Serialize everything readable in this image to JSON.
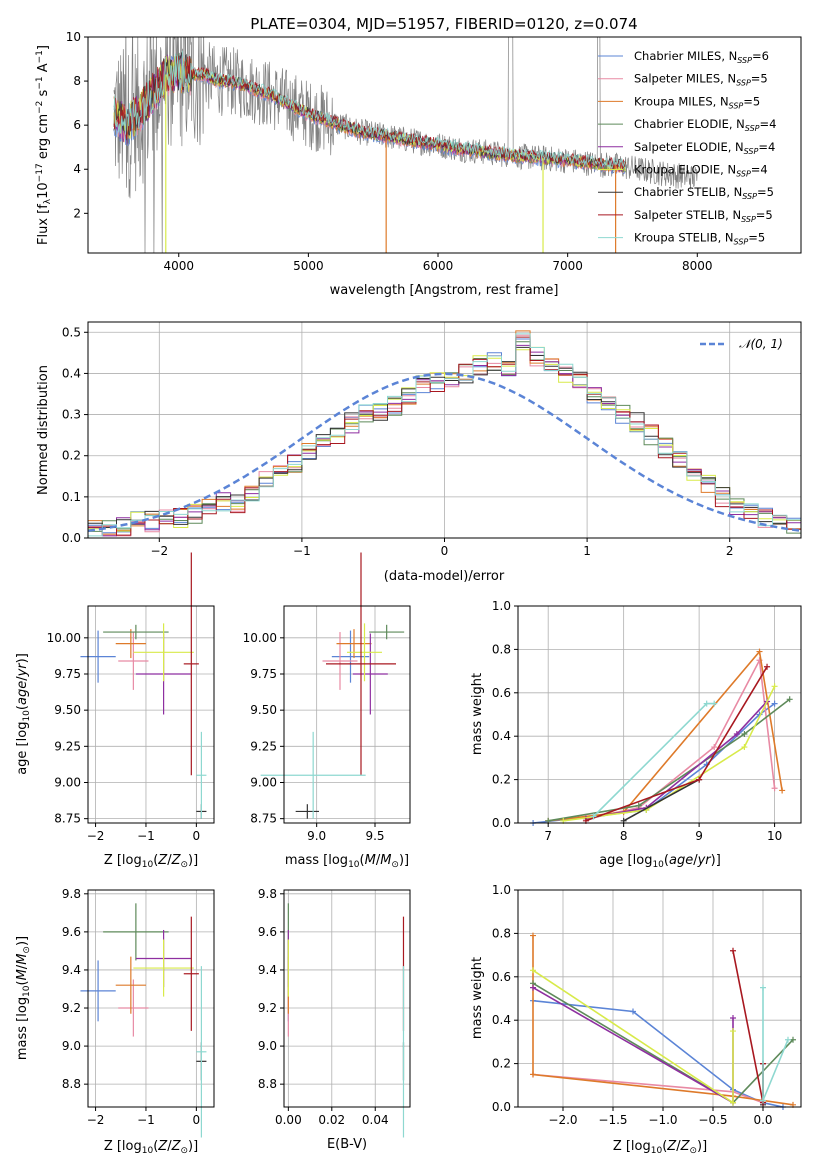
{
  "title": "PLATE=0304, MJD=51957, FIBERID=0120, z=0.074",
  "colors": {
    "chabrier_miles": "#5b84d6",
    "salpeter_miles": "#e88aa4",
    "kroupa_miles": "#de7a2a",
    "chabrier_elodie": "#5e8a5a",
    "salpeter_elodie": "#8e2fa0",
    "kroupa_elodie": "#d8ea4a",
    "chabrier_stelib": "#333333",
    "salpeter_stelib": "#a81820",
    "kroupa_stelib": "#8ed8d0",
    "data_gray": "#808080",
    "normal_dash": "#5b84d6"
  },
  "chart_data": [
    {
      "id": "spectrum",
      "type": "line",
      "xlabel": "wavelength [Angstrom, rest frame]",
      "ylabel": "Flux [f_λ 10^-17 erg cm^-2 s^-1 A^-1]",
      "xlim": [
        3300,
        8800
      ],
      "ylim": [
        0.2,
        10
      ],
      "xticks": [
        4000,
        5000,
        6000,
        7000,
        8000
      ],
      "yticks": [
        2,
        4,
        6,
        8,
        10
      ],
      "legend_position": "upper right",
      "legend": [
        {
          "base": "Chabrier MILES, N",
          "sub": "SSP",
          "tail": "=6",
          "color_key": "chabrier_miles"
        },
        {
          "base": "Salpeter MILES, N",
          "sub": "SSP",
          "tail": "=5",
          "color_key": "salpeter_miles"
        },
        {
          "base": "Kroupa MILES, N",
          "sub": "SSP",
          "tail": "=5",
          "color_key": "kroupa_miles"
        },
        {
          "base": "Chabrier ELODIE, N",
          "sub": "SSP",
          "tail": "=4",
          "color_key": "chabrier_elodie"
        },
        {
          "base": "Salpeter ELODIE, N",
          "sub": "SSP",
          "tail": "=4",
          "color_key": "salpeter_elodie"
        },
        {
          "base": "Kroupa ELODIE, N",
          "sub": "SSP",
          "tail": "=4",
          "color_key": "kroupa_elodie"
        },
        {
          "base": "Chabrier STELIB, N",
          "sub": "SSP",
          "tail": "=5",
          "color_key": "chabrier_stelib"
        },
        {
          "base": "Salpeter STELIB, N",
          "sub": "SSP",
          "tail": "=5",
          "color_key": "salpeter_stelib"
        },
        {
          "base": "Kroupa STELIB, N",
          "sub": "SSP",
          "tail": "=5",
          "color_key": "kroupa_stelib"
        }
      ],
      "model_continuum": [
        [
          3500,
          6.5
        ],
        [
          3600,
          6.0
        ],
        [
          3700,
          6.6
        ],
        [
          3800,
          7.4
        ],
        [
          3900,
          8.3
        ],
        [
          4000,
          8.4
        ],
        [
          4100,
          8.3
        ],
        [
          4200,
          8.3
        ],
        [
          4300,
          8.0
        ],
        [
          4400,
          8.0
        ],
        [
          4500,
          7.8
        ],
        [
          4600,
          7.6
        ],
        [
          4700,
          7.4
        ],
        [
          4800,
          7.1
        ],
        [
          4900,
          6.8
        ],
        [
          5000,
          6.5
        ],
        [
          5200,
          6.1
        ],
        [
          5400,
          5.7
        ],
        [
          5600,
          5.5
        ],
        [
          5800,
          5.3
        ],
        [
          6000,
          5.1
        ],
        [
          6200,
          4.9
        ],
        [
          6400,
          4.75
        ],
        [
          6600,
          4.6
        ],
        [
          6800,
          4.5
        ],
        [
          7000,
          4.4
        ],
        [
          7200,
          4.25
        ],
        [
          7400,
          4.15
        ],
        [
          7600,
          3.95
        ],
        [
          7800,
          3.75
        ],
        [
          8000,
          3.6
        ]
      ]
    },
    {
      "id": "residuals",
      "type": "line",
      "xlabel": "(data-model)/error",
      "ylabel": "Normed distribution",
      "xlim": [
        -2.5,
        2.5
      ],
      "ylim": [
        0,
        0.525
      ],
      "xticks": [
        -2,
        -1,
        0,
        1,
        2
      ],
      "yticks": [
        0.0,
        0.1,
        0.2,
        0.3,
        0.4,
        0.5
      ],
      "legend_label": "𝒩(0, 1)",
      "bin_width": 0.1,
      "bin_start": -2.5,
      "representative_hist": [
        0.02,
        0.02,
        0.03,
        0.04,
        0.04,
        0.05,
        0.05,
        0.06,
        0.07,
        0.09,
        0.08,
        0.11,
        0.14,
        0.16,
        0.18,
        0.21,
        0.24,
        0.25,
        0.28,
        0.3,
        0.31,
        0.32,
        0.34,
        0.37,
        0.38,
        0.39,
        0.4,
        0.42,
        0.43,
        0.41,
        0.48,
        0.44,
        0.42,
        0.4,
        0.38,
        0.35,
        0.33,
        0.3,
        0.28,
        0.25,
        0.22,
        0.19,
        0.15,
        0.13,
        0.1,
        0.08,
        0.07,
        0.05,
        0.04,
        0.03
      ]
    },
    {
      "id": "age_vs_Z",
      "type": "scatter",
      "xlabel": "Z [log10(Z/Z⊙)]",
      "ylabel": "age [log10(age/yr)]",
      "xlim": [
        -2.15,
        0.35
      ],
      "ylim": [
        8.72,
        10.22
      ],
      "xticks": [
        -2,
        -1,
        0
      ],
      "yticks": [
        8.75,
        9.0,
        9.25,
        9.5,
        9.75,
        10.0
      ]
    },
    {
      "id": "age_vs_mass",
      "type": "scatter",
      "xlabel": "mass [log10(M/M⊙)]",
      "ylabel": "",
      "xlim": [
        8.72,
        9.8
      ],
      "ylim": [
        8.72,
        10.22
      ],
      "xticks": [
        9.0,
        9.5
      ],
      "yticks": [
        8.75,
        9.0,
        9.25,
        9.5,
        9.75,
        10.0
      ]
    },
    {
      "id": "weight_vs_age",
      "type": "line",
      "xlabel": "age [log10(age/yr)]",
      "ylabel": "mass weight",
      "xlim": [
        6.6,
        10.35
      ],
      "ylim": [
        0,
        1
      ],
      "xticks": [
        7,
        8,
        9,
        10
      ],
      "yticks": [
        0.0,
        0.2,
        0.4,
        0.6,
        0.8,
        1.0
      ]
    },
    {
      "id": "mass_vs_Z",
      "type": "scatter",
      "xlabel": "Z [log10(Z/Z⊙)]",
      "ylabel": "mass [log10(M/M⊙)]",
      "xlim": [
        -2.15,
        0.35
      ],
      "ylim": [
        8.68,
        9.82
      ],
      "xticks": [
        -2,
        -1,
        0
      ],
      "yticks": [
        8.8,
        9.0,
        9.2,
        9.4,
        9.6,
        9.8
      ]
    },
    {
      "id": "mass_vs_ebv",
      "type": "scatter",
      "xlabel": "E(B-V)",
      "ylabel": "",
      "xlim": [
        -0.002,
        0.056
      ],
      "ylim": [
        8.68,
        9.82
      ],
      "xticks": [
        0.0,
        0.02,
        0.04
      ],
      "yticks": [
        8.8,
        9.0,
        9.2,
        9.4,
        9.6,
        9.8
      ]
    },
    {
      "id": "weight_vs_Z",
      "type": "line",
      "xlabel": "Z [log10(Z/Z⊙)]",
      "ylabel": "mass weight",
      "xlim": [
        -2.45,
        0.38
      ],
      "ylim": [
        0,
        1
      ],
      "xticks": [
        -2.0,
        -1.5,
        -1.0,
        -0.5,
        0.0
      ],
      "yticks": [
        0.0,
        0.2,
        0.4,
        0.6,
        0.8,
        1.0
      ]
    }
  ],
  "fits": [
    {
      "key": "chabrier_miles",
      "Z": -1.95,
      "Zerr": 0.35,
      "age": 9.87,
      "ageerr": 0.18,
      "mass": 9.29,
      "masserr": 0.16,
      "ebv": 0.0,
      "age_pts": [
        [
          6.8,
          0.0
        ],
        [
          7.6,
          0.03
        ],
        [
          8.3,
          0.06
        ],
        [
          9.1,
          0.27
        ],
        [
          9.8,
          0.5
        ],
        [
          10.0,
          0.55
        ]
      ],
      "Z_pts": [
        [
          -2.3,
          0.49
        ],
        [
          -1.3,
          0.44
        ],
        [
          -0.3,
          0.08
        ],
        [
          0.0,
          0.02
        ],
        [
          0.2,
          0.0
        ]
      ]
    },
    {
      "key": "salpeter_miles",
      "Z": -1.25,
      "Zerr": 0.3,
      "age": 9.84,
      "ageerr": 0.2,
      "mass": 9.2,
      "masserr": 0.15,
      "ebv": 0.0,
      "age_pts": [
        [
          7.5,
          0.02
        ],
        [
          8.2,
          0.07
        ],
        [
          9.2,
          0.35
        ],
        [
          9.8,
          0.75
        ],
        [
          10.0,
          0.16
        ]
      ],
      "Z_pts": [
        [
          -2.3,
          0.15
        ],
        [
          -0.3,
          0.07
        ],
        [
          0.0,
          0.02
        ]
      ]
    },
    {
      "key": "kroupa_miles",
      "Z": -1.3,
      "Zerr": 0.3,
      "age": 9.96,
      "ageerr": 0.1,
      "mass": 9.32,
      "masserr": 0.15,
      "ebv": 0.0,
      "age_pts": [
        [
          7.0,
          0.01
        ],
        [
          8.0,
          0.05
        ],
        [
          9.8,
          0.79
        ],
        [
          10.1,
          0.15
        ]
      ],
      "Z_pts": [
        [
          -2.3,
          0.79
        ],
        [
          -2.3,
          0.15
        ],
        [
          -0.3,
          0.05
        ],
        [
          0.3,
          0.01
        ]
      ]
    },
    {
      "key": "chabrier_elodie",
      "Z": -1.2,
      "Zerr": 0.65,
      "age": 10.04,
      "ageerr": 0.05,
      "mass": 9.6,
      "masserr": 0.15,
      "ebv": 0.0,
      "age_pts": [
        [
          7.0,
          0.01
        ],
        [
          8.2,
          0.08
        ],
        [
          9.6,
          0.41
        ],
        [
          10.2,
          0.57
        ]
      ],
      "Z_pts": [
        [
          -2.3,
          0.57
        ],
        [
          -0.3,
          0.02
        ],
        [
          0.3,
          0.31
        ]
      ]
    },
    {
      "key": "salpeter_elodie",
      "Z": -0.65,
      "Zerr": 0.55,
      "age": 9.75,
      "ageerr": 0.28,
      "mass": 9.46,
      "masserr": 0.15,
      "ebv": 0.0,
      "age_pts": [
        [
          7.5,
          0.02
        ],
        [
          8.3,
          0.07
        ],
        [
          9.5,
          0.41
        ],
        [
          9.9,
          0.56
        ]
      ],
      "Z_pts": [
        [
          -2.3,
          0.55
        ],
        [
          -0.3,
          0.02
        ],
        [
          -0.3,
          0.41
        ]
      ]
    },
    {
      "key": "kroupa_elodie",
      "Z": -0.65,
      "Zerr": 0.6,
      "age": 9.9,
      "ageerr": 0.2,
      "mass": 9.41,
      "masserr": 0.15,
      "ebv": 0.0,
      "age_pts": [
        [
          7.2,
          0.01
        ],
        [
          8.3,
          0.06
        ],
        [
          9.6,
          0.35
        ],
        [
          10.0,
          0.63
        ]
      ],
      "Z_pts": [
        [
          -2.3,
          0.63
        ],
        [
          -0.3,
          0.02
        ],
        [
          -0.3,
          0.35
        ]
      ]
    },
    {
      "key": "chabrier_stelib",
      "Z": 0.1,
      "Zerr": 0.1,
      "age": 8.8,
      "ageerr": 0.05,
      "mass": 8.92,
      "masserr": 0.1,
      "ebv": 0.053,
      "age_pts": [
        [
          8.0,
          0.01
        ],
        [
          9.0,
          0.2
        ]
      ],
      "Z_pts": [
        [
          0.0,
          0.01
        ],
        [
          0.0,
          0.2
        ]
      ]
    },
    {
      "key": "salpeter_stelib",
      "Z": -0.1,
      "Zerr": 0.15,
      "age": 9.82,
      "ageerr": 0.77,
      "mass": 9.38,
      "masserr": 0.3,
      "ebv": 0.053,
      "age_pts": [
        [
          7.5,
          0.01
        ],
        [
          9.0,
          0.2
        ],
        [
          9.9,
          0.72
        ]
      ],
      "Z_pts": [
        [
          -0.3,
          0.72
        ],
        [
          0.0,
          0.02
        ],
        [
          0.0,
          0.2
        ]
      ]
    },
    {
      "key": "kroupa_stelib",
      "Z": 0.1,
      "Zerr": 0.1,
      "age": 9.05,
      "ageerr": 0.3,
      "mass": 8.97,
      "masserr": 0.45,
      "ebv": 0.053,
      "age_pts": [
        [
          7.6,
          0.03
        ],
        [
          9.1,
          0.55
        ],
        [
          9.2,
          0.55
        ]
      ],
      "Z_pts": [
        [
          0.0,
          0.55
        ],
        [
          0.0,
          0.03
        ],
        [
          0.25,
          0.31
        ]
      ]
    }
  ]
}
